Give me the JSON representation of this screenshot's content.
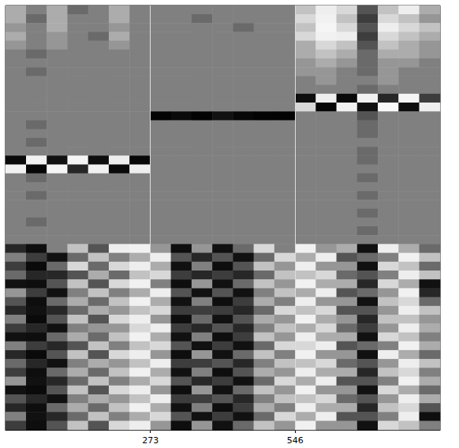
{
  "chart_data": {
    "type": "heatmap",
    "xlim": [
      0,
      819
    ],
    "xticks": [
      273,
      546
    ],
    "tick_labels": "x",
    "value_range": [
      -1,
      1
    ],
    "cells": [
      [
        0.2,
        0,
        0.2,
        -0.1,
        0,
        0.2,
        0,
        0,
        0,
        0,
        0,
        0,
        0,
        0,
        0.3,
        0.5,
        0.4,
        -0.2,
        0.3,
        0.5,
        0.2
      ],
      [
        0.2,
        -0.1,
        0.2,
        0,
        0,
        0.2,
        0,
        0,
        0,
        -0.1,
        0,
        0,
        0,
        0,
        0.4,
        0.6,
        0.3,
        -0.3,
        0.4,
        0.3,
        0.1
      ],
      [
        0.1,
        0,
        0.2,
        0,
        0,
        0.1,
        0,
        0,
        0,
        0,
        0,
        -0.1,
        0,
        0,
        0.3,
        0.7,
        0.4,
        -0.2,
        0.5,
        0.4,
        0.3
      ],
      [
        0.2,
        0,
        0.1,
        0,
        -0.1,
        0.2,
        0,
        0,
        0,
        0,
        0,
        0,
        0,
        0,
        0.4,
        0.6,
        0.5,
        -0.3,
        0.4,
        0.3,
        0.2
      ],
      [
        0.1,
        0,
        0.1,
        0,
        0,
        0.1,
        0,
        0,
        0,
        0,
        0,
        0,
        0,
        0,
        0.2,
        0.4,
        0.3,
        -0.2,
        0.3,
        0.2,
        0.1
      ],
      [
        0,
        -0.1,
        0,
        0,
        0,
        0,
        0,
        0,
        0,
        0,
        0,
        0,
        0,
        0,
        0.2,
        0.3,
        0.2,
        -0.1,
        0.2,
        0.2,
        0.1
      ],
      [
        0,
        0,
        0,
        0,
        0,
        0,
        0,
        0,
        0,
        0,
        0,
        0,
        0,
        0,
        0.1,
        0.2,
        0.1,
        -0.1,
        0.1,
        0.1,
        0
      ],
      [
        0,
        -0.1,
        0,
        0,
        0,
        0,
        0,
        0,
        0,
        0,
        0,
        0,
        0,
        0,
        0.1,
        0.1,
        0,
        -0.1,
        0.1,
        0,
        0
      ],
      [
        0,
        0,
        0,
        0,
        0,
        0,
        0,
        0,
        0,
        0,
        0,
        0,
        0,
        0,
        0,
        0.1,
        0,
        0,
        0.1,
        0,
        0
      ],
      [
        0,
        0,
        0,
        0,
        0,
        0,
        0,
        0,
        0,
        0,
        0,
        0,
        0,
        0,
        0,
        0,
        0,
        -0.1,
        0,
        0,
        0
      ],
      [
        0,
        0,
        0,
        0,
        0,
        0,
        0,
        0,
        0,
        0,
        0,
        0,
        0,
        0,
        -0.6,
        0.5,
        -0.7,
        0.6,
        -0.4,
        0.7,
        -0.3
      ],
      [
        0,
        0,
        0,
        0,
        0,
        0,
        0,
        0,
        0,
        0,
        0,
        0,
        0,
        0,
        0.4,
        -0.8,
        0.6,
        -0.5,
        0.8,
        -0.6,
        0.5
      ],
      [
        0,
        0,
        0,
        0,
        0,
        0,
        0,
        -0.9,
        -0.7,
        -0.9,
        -0.5,
        -0.8,
        -0.9,
        -0.9,
        0,
        0,
        0,
        -0.2,
        0,
        0,
        0
      ],
      [
        0,
        -0.1,
        0,
        0,
        0,
        0,
        0,
        0,
        0,
        0,
        0,
        0,
        0,
        0,
        0,
        0,
        0,
        -0.1,
        0,
        0,
        0
      ],
      [
        0,
        0,
        0,
        0,
        0,
        0,
        0,
        0,
        0,
        0,
        0,
        0,
        0,
        0,
        0,
        0,
        0,
        -0.1,
        0,
        0,
        0
      ],
      [
        0,
        -0.1,
        0,
        0,
        0,
        0,
        0,
        0,
        0,
        0,
        0,
        0,
        0,
        0,
        0,
        0,
        0,
        0,
        0,
        0,
        0
      ],
      [
        0,
        0,
        0,
        0,
        0,
        0,
        0,
        0,
        0,
        0,
        0,
        0,
        0,
        0,
        0,
        0,
        0,
        -0.1,
        0,
        0,
        0
      ],
      [
        -0.7,
        0.6,
        -0.5,
        0.7,
        -0.6,
        0.5,
        -0.8,
        0,
        0,
        0,
        0,
        0,
        0,
        0,
        0,
        0,
        0,
        -0.1,
        0,
        0,
        0
      ],
      [
        0.6,
        -0.8,
        0.7,
        -0.4,
        0.6,
        -0.7,
        0.5,
        0,
        0,
        0,
        0,
        0,
        0,
        0,
        0,
        0,
        0,
        0,
        0,
        0,
        0
      ],
      [
        0,
        -0.1,
        0,
        0,
        0,
        0,
        0,
        0,
        0,
        0,
        0,
        0,
        0,
        0,
        0,
        0,
        0,
        -0.1,
        0,
        0,
        0
      ],
      [
        0,
        0,
        0,
        0,
        0,
        0,
        0,
        0,
        0,
        0,
        0,
        0,
        0,
        0,
        0,
        0,
        0,
        0,
        0,
        0,
        0
      ],
      [
        0,
        -0.1,
        0,
        0,
        0,
        0,
        0,
        0,
        0,
        0,
        0,
        0,
        0,
        0,
        0,
        0,
        0,
        -0.1,
        0,
        0,
        0
      ],
      [
        0,
        0,
        0,
        0,
        0,
        0,
        0,
        0,
        0,
        0,
        0,
        0,
        0,
        0,
        0,
        0,
        0,
        0,
        0,
        0,
        0
      ],
      [
        0,
        0,
        0,
        0,
        0,
        0,
        0,
        0,
        0,
        0,
        0,
        0,
        0,
        0,
        0,
        0,
        0,
        -0.1,
        0,
        0,
        0
      ],
      [
        0,
        -0.1,
        0,
        0,
        0,
        0,
        0,
        0,
        0,
        0,
        0,
        0,
        0,
        0,
        0,
        0,
        0,
        0,
        0,
        0,
        0
      ],
      [
        0,
        0,
        0,
        0,
        0,
        0,
        0,
        0,
        0,
        0,
        0,
        0,
        0,
        0,
        0,
        0,
        0,
        -0.1,
        0,
        0,
        0
      ],
      [
        0,
        0,
        0,
        0,
        0,
        0,
        0,
        0,
        0,
        0,
        0,
        0,
        0,
        0,
        0,
        0,
        0,
        0,
        0,
        0,
        0
      ],
      [
        -0.4,
        -0.6,
        0,
        0.3,
        -0.2,
        0.5,
        0.6,
        0.1,
        -0.6,
        0.1,
        -0.5,
        -0.1,
        0.4,
        0,
        0.6,
        0.1,
        0.2,
        -0.5,
        0.5,
        0.2,
        -0.1
      ],
      [
        0,
        -0.3,
        -0.5,
        -0.1,
        0.3,
        0,
        0.2,
        0.5,
        -0.2,
        -0.4,
        -0.2,
        -0.5,
        -0.1,
        0.4,
        0.2,
        0.5,
        -0.2,
        -0.1,
        0,
        0.6,
        0.3
      ],
      [
        -0.3,
        -0.7,
        -0.1,
        0.4,
        -0.1,
        0.4,
        0.5,
        0.2,
        -0.5,
        0,
        -0.6,
        -0.2,
        0.3,
        0.1,
        0.5,
        0.1,
        0.1,
        -0.5,
        0.4,
        0.3,
        -0.1
      ],
      [
        -0.1,
        -0.4,
        -0.4,
        -0.2,
        0.2,
        -0.1,
        0.3,
        0.4,
        -0.3,
        -0.4,
        -0.3,
        -0.4,
        -0.1,
        0.3,
        0.3,
        0.4,
        -0.1,
        -0.2,
        0,
        0.5,
        0.3
      ],
      [
        -0.5,
        -0.6,
        -0.2,
        0.3,
        -0.2,
        0.4,
        0.6,
        0,
        -0.6,
        0.1,
        -0.5,
        -0.1,
        0.3,
        0.1,
        0.6,
        0.2,
        0.2,
        -0.4,
        0.4,
        0.2,
        -0.5
      ],
      [
        0.1,
        -0.3,
        -0.5,
        0,
        0.3,
        0,
        0.2,
        0.5,
        -0.2,
        -0.5,
        -0.2,
        -0.5,
        0,
        0.3,
        0.2,
        0.5,
        -0.2,
        -0.1,
        0.1,
        0.6,
        -0.4
      ],
      [
        -0.2,
        -0.6,
        -0.1,
        0.2,
        -0.1,
        0.3,
        0.6,
        0.2,
        -0.5,
        0,
        -0.6,
        -0.3,
        0.2,
        0,
        0.5,
        0.1,
        0.1,
        -0.5,
        0.3,
        0.4,
        -0.1
      ],
      [
        -0.4,
        -0.5,
        -0.4,
        -0.1,
        0.2,
        0.1,
        0.3,
        0.4,
        -0.3,
        -0.3,
        -0.3,
        -0.4,
        -0.1,
        0.4,
        0.3,
        0.4,
        -0.2,
        -0.2,
        0.1,
        0.5,
        0.3
      ],
      [
        0,
        -0.7,
        -0.2,
        0.3,
        -0.2,
        0.4,
        0.5,
        0.1,
        -0.6,
        -0.1,
        -0.5,
        -0.2,
        0.2,
        0.1,
        0.6,
        0.2,
        0.1,
        -0.4,
        0.3,
        0.3,
        0.1
      ],
      [
        -0.3,
        -0.4,
        -0.5,
        0,
        0.1,
        0.1,
        0.4,
        0.5,
        -0.3,
        -0.4,
        -0.2,
        -0.4,
        0,
        0.3,
        0.2,
        0.4,
        -0.1,
        -0.3,
        0.1,
        0.5,
        0.2
      ],
      [
        -0.5,
        -0.6,
        -0.1,
        0.2,
        -0.1,
        0.3,
        0.6,
        0.2,
        -0.5,
        0,
        -0.6,
        -0.3,
        0.3,
        0.1,
        0.5,
        0.2,
        0.2,
        -0.5,
        0.4,
        0.3,
        0
      ],
      [
        0,
        -0.3,
        -0.4,
        -0.2,
        0.3,
        0,
        0.3,
        0.4,
        -0.2,
        -0.5,
        -0.3,
        -0.5,
        -0.1,
        0.4,
        0.4,
        0.5,
        -0.2,
        -0.1,
        0,
        0.6,
        0.2
      ],
      [
        -0.4,
        -0.7,
        -0.2,
        0.3,
        -0.2,
        0.4,
        0.5,
        0.1,
        -0.6,
        0.1,
        -0.5,
        -0.1,
        0.3,
        0,
        0.6,
        0.1,
        0.1,
        -0.5,
        0.5,
        0.2,
        -0.1
      ],
      [
        -0.1,
        -0.4,
        -0.5,
        0,
        0.2,
        0.1,
        0.3,
        0.5,
        -0.3,
        -0.3,
        -0.2,
        -0.4,
        0,
        0.3,
        0.3,
        0.4,
        -0.1,
        -0.2,
        0.1,
        0.5,
        0.3
      ],
      [
        -0.3,
        -0.6,
        -0.1,
        0.2,
        -0.1,
        0.3,
        0.6,
        0.2,
        -0.5,
        0,
        -0.6,
        -0.2,
        0.2,
        0.1,
        0.5,
        0.2,
        0.2,
        -0.4,
        0.3,
        0.4,
        0
      ],
      [
        0.1,
        -0.5,
        -0.4,
        -0.1,
        0.3,
        0,
        0.2,
        0.4,
        -0.2,
        -0.4,
        -0.3,
        -0.5,
        -0.1,
        0.4,
        0.2,
        0.5,
        -0.2,
        -0.2,
        0,
        0.6,
        0.2
      ],
      [
        -0.5,
        -0.7,
        -0.2,
        0.3,
        -0.2,
        0.4,
        0.5,
        0.1,
        -0.6,
        0.1,
        -0.5,
        -0.1,
        0.3,
        0.1,
        0.6,
        0.1,
        0.1,
        -0.5,
        0.4,
        0.2,
        -0.1
      ],
      [
        -0.2,
        -0.4,
        -0.5,
        0,
        0.2,
        0.1,
        0.3,
        0.5,
        -0.3,
        -0.3,
        -0.2,
        -0.4,
        0,
        0.3,
        0.3,
        0.4,
        -0.1,
        -0.2,
        0.1,
        0.5,
        0.2
      ],
      [
        -0.4,
        -0.6,
        -0.1,
        0.2,
        -0.1,
        0.3,
        0.6,
        0.2,
        -0.5,
        0,
        -0.6,
        -0.3,
        0.2,
        0,
        0.5,
        0.2,
        0.2,
        -0.4,
        0.3,
        0.4,
        -0.2
      ],
      [
        0,
        -0.5,
        -0.4,
        -0.1,
        0.3,
        0,
        0.2,
        0.4,
        -0.2,
        -0.5,
        -0.3,
        -0.5,
        -0.1,
        0.4,
        0.2,
        0.5,
        -0.2,
        -0.2,
        0,
        0.5,
        -0.6
      ],
      [
        -0.3,
        -0.6,
        -0.2,
        0.3,
        -0.2,
        0.4,
        0.5,
        0.1,
        -0.6,
        0.1,
        -0.5,
        -0.1,
        0.3,
        0.1,
        0.6,
        0.1,
        0.1,
        -0.5,
        0.4,
        0.3,
        0
      ]
    ]
  }
}
